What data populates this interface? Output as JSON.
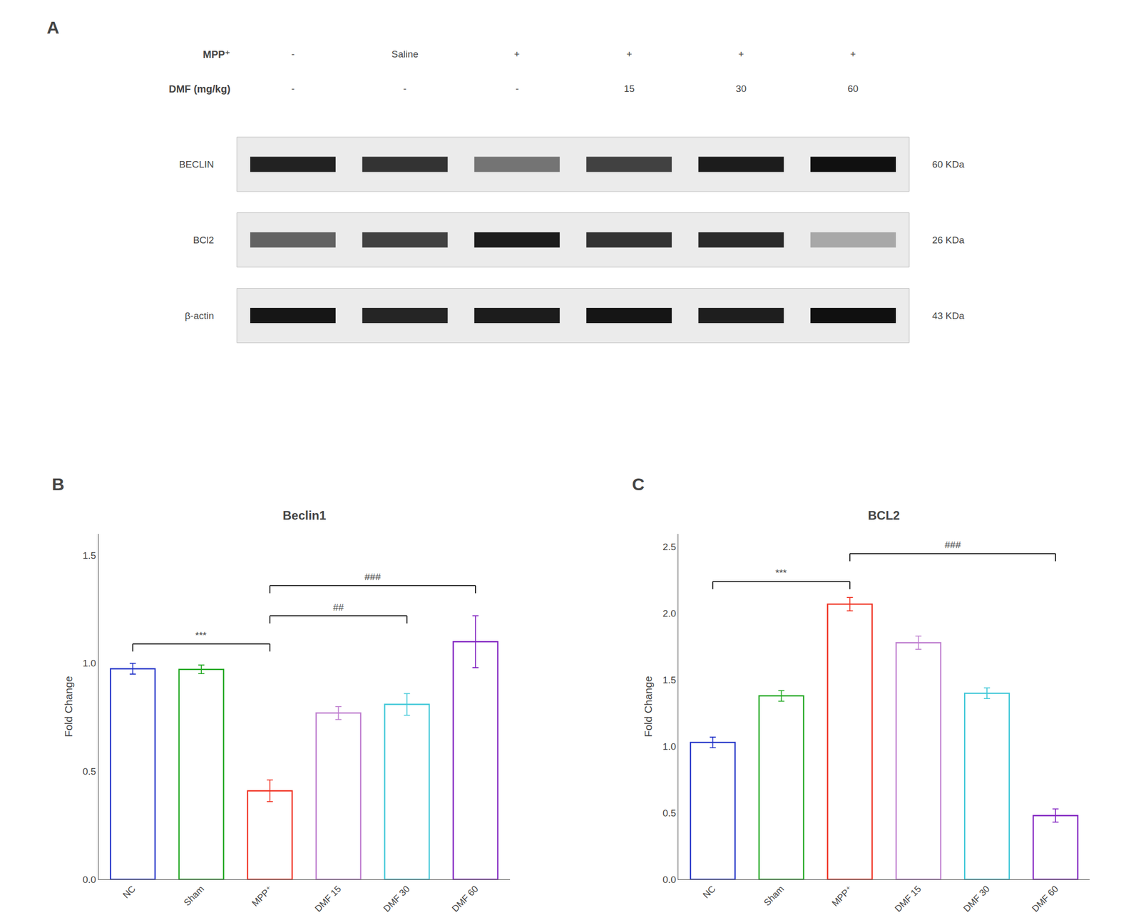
{
  "chart_data": [
    {
      "type": "heatmap",
      "panel_label": "A",
      "header_rows": [
        {
          "name": "MPP⁺",
          "values": [
            "-",
            "Saline",
            "+",
            "+",
            "+",
            "+"
          ]
        },
        {
          "name": "DMF (mg/kg)",
          "values": [
            "-",
            "-",
            "-",
            "15",
            "30",
            "60"
          ]
        }
      ],
      "rows": [
        {
          "name": "BECLIN",
          "size": "60 KDa",
          "values": [
            0.85,
            0.78,
            0.5,
            0.72,
            0.88,
            0.93
          ]
        },
        {
          "name": "BCl2",
          "size": "26 KDa",
          "values": [
            0.58,
            0.72,
            0.88,
            0.78,
            0.82,
            0.28
          ]
        },
        {
          "name": "β-actin",
          "size": "43 KDa",
          "values": [
            0.9,
            0.84,
            0.88,
            0.91,
            0.87,
            0.93
          ]
        }
      ],
      "tick_labels": false
    },
    {
      "type": "bar",
      "panel_label": "B",
      "title": "Beclin1",
      "ylabel": "Fold Change",
      "categories": [
        "NC",
        "Sham",
        "MPP⁺",
        "DMF 15",
        "DMF 30",
        "DMF 60"
      ],
      "values": [
        0.975,
        0.972,
        0.41,
        0.77,
        0.81,
        1.1
      ],
      "errors": [
        0.025,
        0.02,
        0.05,
        0.03,
        0.05,
        0.12
      ],
      "colors": [
        "#2132c8",
        "#22a822",
        "#f03020",
        "#c080d0",
        "#40c8d8",
        "#8020c0"
      ],
      "ylim": [
        0,
        1.6
      ],
      "yticks": [
        {
          "value": 0,
          "label": "0.0"
        },
        0.5,
        {
          "value": 1,
          "label": "1.0"
        },
        1.5
      ],
      "grid": false,
      "annotations": [
        {
          "from": "NC",
          "to": "MPP⁺",
          "y": 1.09,
          "label": "***"
        },
        {
          "from": "MPP⁺",
          "to": "DMF 30",
          "y": 1.22,
          "label": "##"
        },
        {
          "from": "MPP⁺",
          "to": "DMF 60",
          "y": 1.36,
          "label": "###"
        }
      ]
    },
    {
      "type": "bar",
      "panel_label": "C",
      "title": "BCL2",
      "ylabel": "Fold Change",
      "categories": [
        "NC",
        "Sham",
        "MPP⁺",
        "DMF 15",
        "DMF 30",
        "DMF 60"
      ],
      "values": [
        1.03,
        1.38,
        2.07,
        1.78,
        1.4,
        0.48
      ],
      "errors": [
        0.04,
        0.04,
        0.05,
        0.05,
        0.04,
        0.05
      ],
      "colors": [
        "#2132c8",
        "#22a822",
        "#f03020",
        "#c080d0",
        "#40c8d8",
        "#8020c0"
      ],
      "ylim": [
        0,
        2.6
      ],
      "yticks": [
        {
          "value": 0,
          "label": "0.0"
        },
        0.5,
        {
          "value": 1,
          "label": "1.0"
        },
        1.5,
        {
          "value": 2,
          "label": "2.0"
        },
        2.5
      ],
      "grid": false,
      "annotations": [
        {
          "from": "NC",
          "to": "MPP⁺",
          "y": 2.24,
          "label": "***"
        },
        {
          "from": "MPP⁺",
          "to": "DMF 60",
          "y": 2.45,
          "label": "###"
        }
      ]
    }
  ]
}
